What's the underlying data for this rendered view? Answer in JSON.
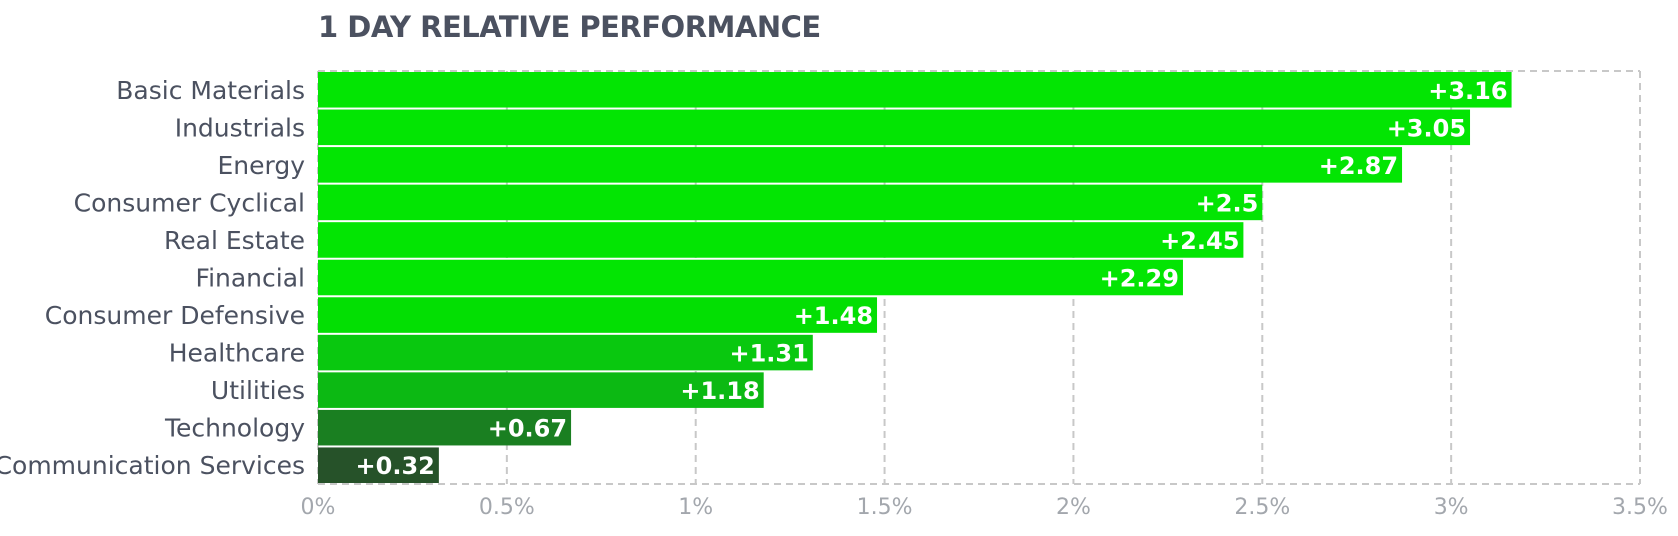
{
  "chart_data": {
    "type": "bar",
    "orientation": "horizontal",
    "title": "1 DAY RELATIVE PERFORMANCE",
    "xlabel": "",
    "ylabel": "",
    "categories": [
      "Basic Materials",
      "Industrials",
      "Energy",
      "Consumer Cyclical",
      "Real Estate",
      "Financial",
      "Consumer Defensive",
      "Healthcare",
      "Utilities",
      "Technology",
      "Communication Services"
    ],
    "values": [
      3.16,
      3.05,
      2.87,
      2.5,
      2.45,
      2.29,
      1.48,
      1.31,
      1.18,
      0.67,
      0.32
    ],
    "value_labels": [
      "+3.16",
      "+3.05",
      "+2.87",
      "+2.5",
      "+2.45",
      "+2.29",
      "+1.48",
      "+1.31",
      "+1.18",
      "+0.67",
      "+0.32"
    ],
    "bar_colors": [
      "#03e503",
      "#03e503",
      "#03e503",
      "#03e503",
      "#03e503",
      "#03e503",
      "#03df03",
      "#09c80f",
      "#0cb913",
      "#1a7f21",
      "#265229"
    ],
    "xlim": [
      0,
      3.5
    ],
    "xticks": [
      0,
      0.5,
      1,
      1.5,
      2,
      2.5,
      3,
      3.5
    ],
    "xtick_labels": [
      "0%",
      "0.5%",
      "1%",
      "1.5%",
      "2%",
      "2.5%",
      "3%",
      "3.5%"
    ],
    "grid": true,
    "legend": "none"
  }
}
